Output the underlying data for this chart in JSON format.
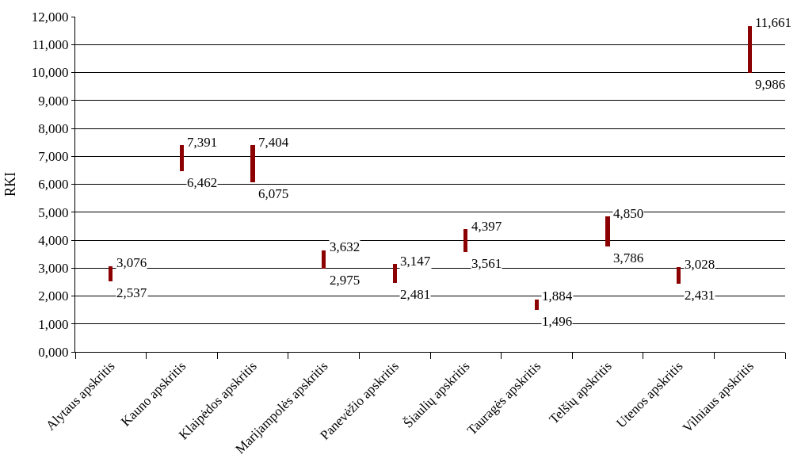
{
  "chart_data": {
    "type": "bar",
    "ylabel": "RKI",
    "categories": [
      "Alytaus apskritis",
      "Kauno apskritis",
      "Klaipėdos apskritis",
      "Marijampolės apskritis",
      "Panevėžio apskritis",
      "Šiaulių apskritis",
      "Tauragės apskritis",
      "Telšių apskritis",
      "Utenos apskritis",
      "Vilniaus apskritis"
    ],
    "base": [
      2537,
      6462,
      6075,
      2975,
      2481,
      3561,
      1496,
      3786,
      2431,
      9986
    ],
    "values": [
      539,
      929,
      1329,
      657,
      666,
      836,
      388,
      1064,
      597,
      1675
    ],
    "color": "#8b0000",
    "ylim": [
      0,
      12000
    ],
    "yticks": [
      {
        "value": 0,
        "label": "0,000"
      },
      {
        "value": 1000,
        "label": "1,000"
      },
      {
        "value": 2000,
        "label": "2,000"
      },
      {
        "value": 3000,
        "label": "3,000"
      },
      {
        "value": 4000,
        "label": "4,000"
      },
      {
        "value": 5000,
        "label": "5,000"
      },
      {
        "value": 6000,
        "label": "6,000"
      },
      {
        "value": 7000,
        "label": "7,000"
      },
      {
        "value": 8000,
        "label": "8,000"
      },
      {
        "value": 9000,
        "label": "9,000"
      },
      {
        "value": 10000,
        "label": "10,000"
      },
      {
        "value": 11000,
        "label": "11,000"
      },
      {
        "value": 12000,
        "label": "12,000"
      }
    ],
    "grid": "y",
    "legend": false,
    "annotations": [
      {
        "text": "3,076",
        "x": "Alytaus apskritis",
        "y": 3076
      },
      {
        "text": "2,537",
        "x": "Alytaus apskritis",
        "y": 2537
      },
      {
        "text": "7,391",
        "x": "Kauno apskritis",
        "y": 7391
      },
      {
        "text": "6,462",
        "x": "Kauno apskritis",
        "y": 6462
      },
      {
        "text": "7,404",
        "x": "Klaipėdos apskritis",
        "y": 7404
      },
      {
        "text": "6,075",
        "x": "Klaipėdos apskritis",
        "y": 6075
      },
      {
        "text": "3,632",
        "x": "Marijampolės apskritis",
        "y": 3632
      },
      {
        "text": "2,975",
        "x": "Marijampolės apskritis",
        "y": 2975
      },
      {
        "text": "3,147",
        "x": "Panevėžio apskritis",
        "y": 3147
      },
      {
        "text": "2,481",
        "x": "Panevėžio apskritis",
        "y": 2481
      },
      {
        "text": "4,397",
        "x": "Šiaulių apskritis",
        "y": 4397
      },
      {
        "text": "3,561",
        "x": "Šiaulių apskritis",
        "y": 3561
      },
      {
        "text": "1,884",
        "x": "Tauragės apskritis",
        "y": 1884
      },
      {
        "text": "1,496",
        "x": "Tauragės apskritis",
        "y": 1496
      },
      {
        "text": "4,850",
        "x": "Telšių apskritis",
        "y": 4850
      },
      {
        "text": "3,786",
        "x": "Telšių apskritis",
        "y": 3786
      },
      {
        "text": "3,028",
        "x": "Utenos apskritis",
        "y": 3028
      },
      {
        "text": "2,431",
        "x": "Utenos apskritis",
        "y": 2431
      },
      {
        "text": "11,661",
        "x": "Vilniaus apskritis",
        "y": 11661
      },
      {
        "text": "9,986",
        "x": "Vilniaus apskritis",
        "y": 9986
      }
    ]
  }
}
